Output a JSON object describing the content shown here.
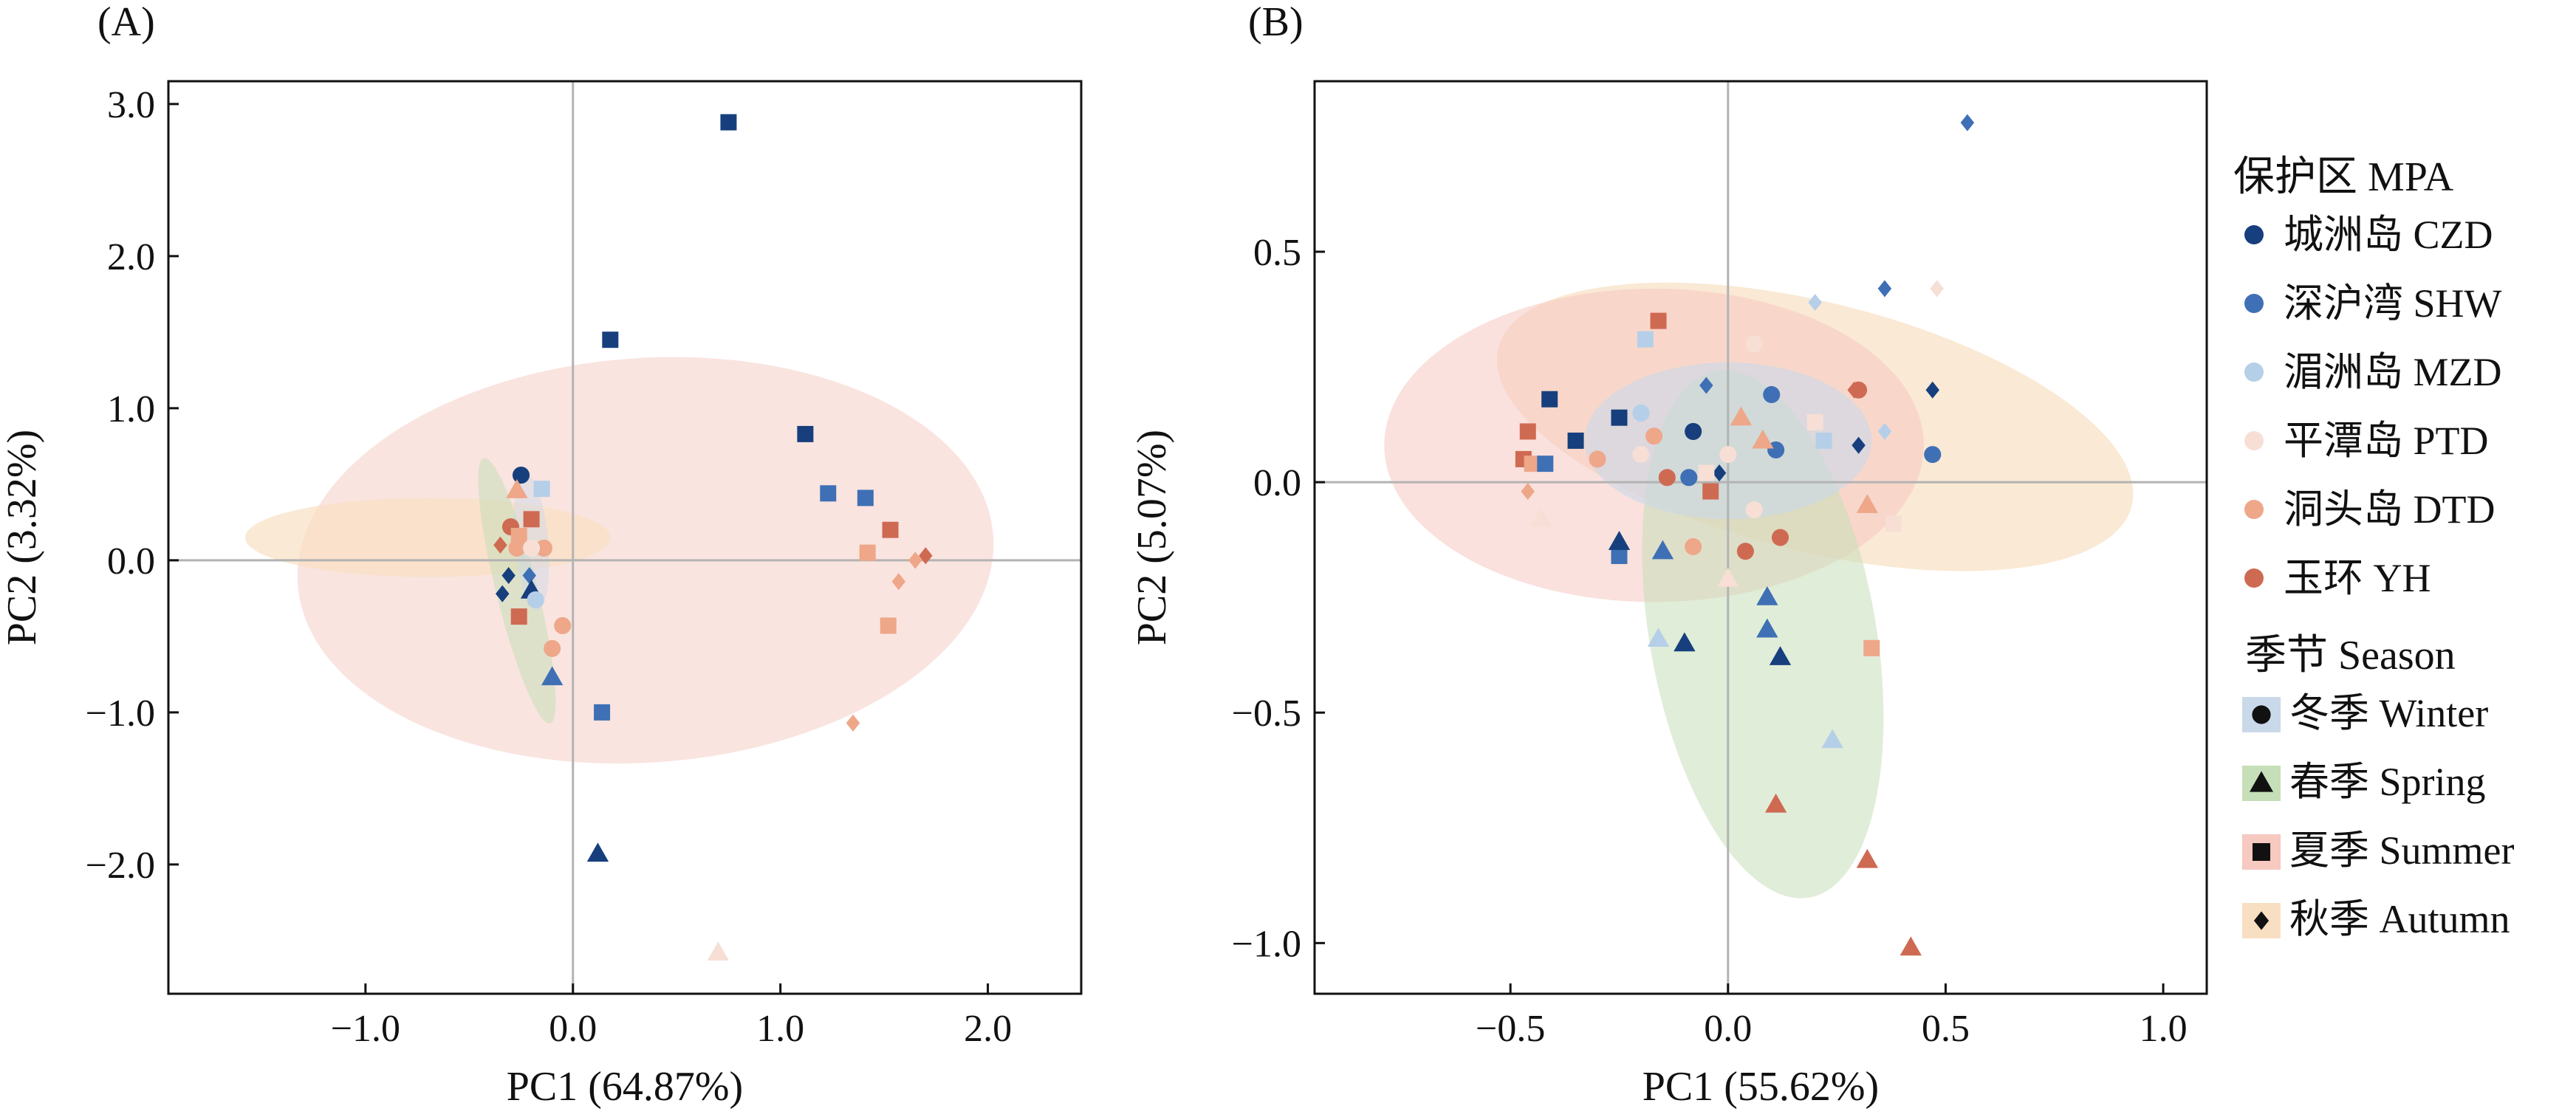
{
  "legend": {
    "mpa_title": "保护区 MPA",
    "season_title": "季节 Season",
    "sites": [
      {
        "label": "城洲岛 CZD",
        "color": "#173f7d"
      },
      {
        "label": "深沪湾 SHW",
        "color": "#3f70b5"
      },
      {
        "label": "湄洲岛 MZD",
        "color": "#b5cfe9"
      },
      {
        "label": "平潭岛 PTD",
        "color": "#f7dfd6"
      },
      {
        "label": "洞头岛 DTD",
        "color": "#eea789"
      },
      {
        "label": "玉环 YH",
        "color": "#cf6a52"
      }
    ],
    "seasons": [
      {
        "label": "冬季 Winter",
        "shape": "circle",
        "fill": "#cad9ea"
      },
      {
        "label": "春季 Spring",
        "shape": "triangle",
        "fill": "#c6dfb8"
      },
      {
        "label": "夏季 Summer",
        "shape": "square",
        "fill": "#f6c9c1"
      },
      {
        "label": "秋季 Autumn",
        "shape": "diamond",
        "fill": "#f8dfc2"
      }
    ]
  },
  "chart_data": [
    {
      "type": "scatter",
      "panel_label": "(A)",
      "xlabel": "PC1 (64.87%)",
      "ylabel": "PC2 (3.32%)",
      "xlim": [
        -1.95,
        2.45
      ],
      "ylim": [
        -2.85,
        3.15
      ],
      "xticks": [
        -1.0,
        0.0,
        1.0,
        2.0
      ],
      "xtick_labels": [
        "−1.0",
        "0.0",
        "1.0",
        "2.0"
      ],
      "yticks": [
        -2.0,
        -1.0,
        0.0,
        1.0,
        2.0,
        3.0
      ],
      "ytick_labels": [
        "−2.0",
        "−1.0",
        "0.0",
        "1.0",
        "2.0",
        "3.0"
      ],
      "ellipses": [
        {
          "season": "Summer",
          "cx": 0.35,
          "cy": 0.0,
          "rx": 1.68,
          "ry": 1.33,
          "angle": 4,
          "color": "#f6c9c1",
          "opacity": 0.5
        },
        {
          "season": "Autumn",
          "cx": -0.7,
          "cy": 0.15,
          "rx": 0.88,
          "ry": 0.26,
          "angle": 0,
          "color": "#f8dfc2",
          "opacity": 0.7
        },
        {
          "season": "Spring",
          "cx": -0.27,
          "cy": -0.2,
          "rx": 0.1,
          "ry": 0.9,
          "angle": 14,
          "color": "#c6dfb8",
          "opacity": 0.55
        },
        {
          "season": "Winter",
          "cx": -0.2,
          "cy": 0.12,
          "rx": 0.08,
          "ry": 0.45,
          "angle": 5,
          "color": "#cad9ea",
          "opacity": 0.45
        }
      ],
      "points": [
        {
          "x": 0.75,
          "y": 2.88,
          "shape": "square",
          "site": "CZD"
        },
        {
          "x": 0.18,
          "y": 1.45,
          "shape": "square",
          "site": "CZD"
        },
        {
          "x": 1.12,
          "y": 0.83,
          "shape": "square",
          "site": "CZD"
        },
        {
          "x": 1.23,
          "y": 0.44,
          "shape": "square",
          "site": "SHW"
        },
        {
          "x": 1.41,
          "y": 0.41,
          "shape": "square",
          "site": "SHW"
        },
        {
          "x": 1.53,
          "y": 0.2,
          "shape": "square",
          "site": "YH"
        },
        {
          "x": 1.42,
          "y": 0.05,
          "shape": "square",
          "site": "DTD"
        },
        {
          "x": 1.52,
          "y": -0.43,
          "shape": "square",
          "site": "DTD"
        },
        {
          "x": 0.14,
          "y": -1.0,
          "shape": "square",
          "site": "SHW"
        },
        {
          "x": 0.12,
          "y": -1.93,
          "shape": "triangle",
          "site": "CZD"
        },
        {
          "x": 0.7,
          "y": -2.58,
          "shape": "triangle",
          "site": "PTD"
        },
        {
          "x": 1.7,
          "y": 0.03,
          "shape": "diamond",
          "site": "YH"
        },
        {
          "x": 1.65,
          "y": 0.0,
          "shape": "diamond",
          "site": "DTD"
        },
        {
          "x": 1.57,
          "y": -0.14,
          "shape": "diamond",
          "site": "DTD"
        },
        {
          "x": 1.35,
          "y": -1.07,
          "shape": "diamond",
          "site": "DTD"
        },
        {
          "x": -0.25,
          "y": 0.56,
          "shape": "circle",
          "site": "CZD"
        },
        {
          "x": -0.27,
          "y": 0.46,
          "shape": "triangle",
          "site": "DTD"
        },
        {
          "x": -0.15,
          "y": 0.47,
          "shape": "square",
          "site": "MZD"
        },
        {
          "x": -0.2,
          "y": 0.27,
          "shape": "square",
          "site": "YH"
        },
        {
          "x": -0.3,
          "y": 0.22,
          "shape": "circle",
          "site": "YH"
        },
        {
          "x": -0.26,
          "y": 0.16,
          "shape": "square",
          "site": "DTD"
        },
        {
          "x": -0.35,
          "y": 0.1,
          "shape": "diamond",
          "site": "YH"
        },
        {
          "x": -0.27,
          "y": 0.08,
          "shape": "circle",
          "site": "DTD"
        },
        {
          "x": -0.14,
          "y": 0.08,
          "shape": "circle",
          "site": "DTD"
        },
        {
          "x": -0.2,
          "y": 0.08,
          "shape": "circle",
          "site": "PTD"
        },
        {
          "x": -0.31,
          "y": -0.1,
          "shape": "diamond",
          "site": "CZD"
        },
        {
          "x": -0.21,
          "y": -0.1,
          "shape": "diamond",
          "site": "SHW"
        },
        {
          "x": -0.34,
          "y": -0.22,
          "shape": "diamond",
          "site": "CZD"
        },
        {
          "x": -0.2,
          "y": -0.2,
          "shape": "triangle",
          "site": "CZD"
        },
        {
          "x": -0.26,
          "y": -0.37,
          "shape": "square",
          "site": "YH"
        },
        {
          "x": -0.05,
          "y": -0.43,
          "shape": "circle",
          "site": "DTD"
        },
        {
          "x": -0.1,
          "y": -0.58,
          "shape": "circle",
          "site": "DTD"
        },
        {
          "x": -0.1,
          "y": -0.77,
          "shape": "triangle",
          "site": "SHW"
        },
        {
          "x": -0.18,
          "y": -0.26,
          "shape": "circle",
          "site": "MZD"
        }
      ]
    },
    {
      "type": "scatter",
      "panel_label": "(B)",
      "xlabel": "PC1 (55.62%)",
      "ylabel": "PC2 (5.07%)",
      "xlim": [
        -0.95,
        1.1
      ],
      "ylim": [
        -1.11,
        0.87
      ],
      "xticks": [
        -0.5,
        0.0,
        0.5,
        1.0
      ],
      "xtick_labels": [
        "−0.5",
        "0.0",
        "0.5",
        "1.0"
      ],
      "yticks": [
        -1.0,
        -0.5,
        0.0,
        0.5
      ],
      "ytick_labels": [
        "−1.0",
        "−0.5",
        "0.0",
        "0.5"
      ],
      "ellipses": [
        {
          "season": "Autumn",
          "cx": 0.2,
          "cy": 0.12,
          "rx": 0.75,
          "ry": 0.27,
          "angle": -14,
          "color": "#f8dfc2",
          "opacity": 0.7
        },
        {
          "season": "Summer",
          "cx": -0.17,
          "cy": 0.08,
          "rx": 0.62,
          "ry": 0.34,
          "angle": 0,
          "color": "#f6c9c1",
          "opacity": 0.55
        },
        {
          "season": "Spring",
          "cx": 0.08,
          "cy": -0.33,
          "rx": 0.26,
          "ry": 0.58,
          "angle": 10,
          "color": "#c6dfb8",
          "opacity": 0.55
        },
        {
          "season": "Winter",
          "cx": 0.0,
          "cy": 0.09,
          "rx": 0.33,
          "ry": 0.17,
          "angle": 0,
          "color": "#cad9ea",
          "opacity": 0.6
        }
      ],
      "points": [
        {
          "x": 0.55,
          "y": 0.78,
          "shape": "diamond",
          "site": "SHW"
        },
        {
          "x": 0.36,
          "y": 0.42,
          "shape": "diamond",
          "site": "SHW"
        },
        {
          "x": 0.2,
          "y": 0.39,
          "shape": "diamond",
          "site": "MZD"
        },
        {
          "x": 0.48,
          "y": 0.42,
          "shape": "diamond",
          "site": "PTD"
        },
        {
          "x": 0.47,
          "y": 0.2,
          "shape": "diamond",
          "site": "CZD"
        },
        {
          "x": 0.29,
          "y": 0.2,
          "shape": "diamond",
          "site": "YH"
        },
        {
          "x": 0.3,
          "y": 0.08,
          "shape": "diamond",
          "site": "CZD"
        },
        {
          "x": 0.36,
          "y": 0.11,
          "shape": "diamond",
          "site": "MZD"
        },
        {
          "x": -0.05,
          "y": 0.21,
          "shape": "diamond",
          "site": "SHW"
        },
        {
          "x": -0.02,
          "y": 0.02,
          "shape": "diamond",
          "site": "CZD"
        },
        {
          "x": -0.46,
          "y": -0.02,
          "shape": "diamond",
          "site": "DTD"
        },
        {
          "x": -0.16,
          "y": 0.35,
          "shape": "square",
          "site": "YH"
        },
        {
          "x": -0.19,
          "y": 0.31,
          "shape": "square",
          "site": "MZD"
        },
        {
          "x": -0.41,
          "y": 0.18,
          "shape": "square",
          "site": "CZD"
        },
        {
          "x": -0.25,
          "y": 0.14,
          "shape": "square",
          "site": "CZD"
        },
        {
          "x": -0.35,
          "y": 0.09,
          "shape": "square",
          "site": "CZD"
        },
        {
          "x": -0.46,
          "y": 0.11,
          "shape": "square",
          "site": "YH"
        },
        {
          "x": -0.47,
          "y": 0.05,
          "shape": "square",
          "site": "YH"
        },
        {
          "x": -0.45,
          "y": 0.04,
          "shape": "square",
          "site": "DTD"
        },
        {
          "x": -0.42,
          "y": 0.04,
          "shape": "square",
          "site": "SHW"
        },
        {
          "x": -0.25,
          "y": -0.16,
          "shape": "square",
          "site": "SHW"
        },
        {
          "x": 0.2,
          "y": 0.13,
          "shape": "square",
          "site": "PTD"
        },
        {
          "x": 0.22,
          "y": 0.09,
          "shape": "square",
          "site": "MZD"
        },
        {
          "x": -0.05,
          "y": 0.02,
          "shape": "square",
          "site": "PTD"
        },
        {
          "x": -0.04,
          "y": -0.02,
          "shape": "square",
          "site": "YH"
        },
        {
          "x": 0.33,
          "y": -0.36,
          "shape": "square",
          "site": "DTD"
        },
        {
          "x": 0.38,
          "y": -0.09,
          "shape": "square",
          "site": "PTD"
        },
        {
          "x": -0.3,
          "y": 0.05,
          "shape": "circle",
          "site": "DTD"
        },
        {
          "x": -0.2,
          "y": 0.15,
          "shape": "circle",
          "site": "MZD"
        },
        {
          "x": -0.08,
          "y": 0.11,
          "shape": "circle",
          "site": "CZD"
        },
        {
          "x": 0.1,
          "y": 0.19,
          "shape": "circle",
          "site": "SHW"
        },
        {
          "x": 0.06,
          "y": 0.3,
          "shape": "circle",
          "site": "PTD"
        },
        {
          "x": -0.17,
          "y": 0.1,
          "shape": "circle",
          "site": "DTD"
        },
        {
          "x": -0.2,
          "y": 0.06,
          "shape": "circle",
          "site": "PTD"
        },
        {
          "x": -0.14,
          "y": 0.01,
          "shape": "circle",
          "site": "YH"
        },
        {
          "x": -0.09,
          "y": 0.01,
          "shape": "circle",
          "site": "SHW"
        },
        {
          "x": 0.0,
          "y": 0.06,
          "shape": "circle",
          "site": "PTD"
        },
        {
          "x": 0.11,
          "y": 0.07,
          "shape": "circle",
          "site": "SHW"
        },
        {
          "x": 0.06,
          "y": -0.06,
          "shape": "circle",
          "site": "PTD"
        },
        {
          "x": 0.04,
          "y": -0.15,
          "shape": "circle",
          "site": "YH"
        },
        {
          "x": -0.08,
          "y": -0.14,
          "shape": "circle",
          "site": "DTD"
        },
        {
          "x": 0.12,
          "y": -0.12,
          "shape": "circle",
          "site": "YH"
        },
        {
          "x": 0.47,
          "y": 0.06,
          "shape": "circle",
          "site": "SHW"
        },
        {
          "x": 0.3,
          "y": 0.2,
          "shape": "circle",
          "site": "YH"
        },
        {
          "x": -0.25,
          "y": -0.13,
          "shape": "triangle",
          "site": "CZD"
        },
        {
          "x": -0.15,
          "y": -0.15,
          "shape": "triangle",
          "site": "SHW"
        },
        {
          "x": -0.16,
          "y": -0.34,
          "shape": "triangle",
          "site": "MZD"
        },
        {
          "x": -0.1,
          "y": -0.35,
          "shape": "triangle",
          "site": "CZD"
        },
        {
          "x": 0.09,
          "y": -0.25,
          "shape": "triangle",
          "site": "SHW"
        },
        {
          "x": 0.09,
          "y": -0.32,
          "shape": "triangle",
          "site": "SHW"
        },
        {
          "x": 0.12,
          "y": -0.38,
          "shape": "triangle",
          "site": "CZD"
        },
        {
          "x": 0.24,
          "y": -0.56,
          "shape": "triangle",
          "site": "MZD"
        },
        {
          "x": 0.11,
          "y": -0.7,
          "shape": "triangle",
          "site": "YH"
        },
        {
          "x": 0.32,
          "y": -0.82,
          "shape": "triangle",
          "site": "YH"
        },
        {
          "x": 0.42,
          "y": -1.01,
          "shape": "triangle",
          "site": "YH"
        },
        {
          "x": 0.32,
          "y": -0.05,
          "shape": "triangle",
          "site": "DTD"
        },
        {
          "x": 0.03,
          "y": 0.14,
          "shape": "triangle",
          "site": "DTD"
        },
        {
          "x": 0.08,
          "y": 0.09,
          "shape": "triangle",
          "site": "DTD"
        },
        {
          "x": 0.0,
          "y": -0.21,
          "shape": "triangle",
          "site": "PTD"
        },
        {
          "x": -0.43,
          "y": -0.08,
          "shape": "triangle",
          "site": "PTD"
        }
      ]
    }
  ]
}
